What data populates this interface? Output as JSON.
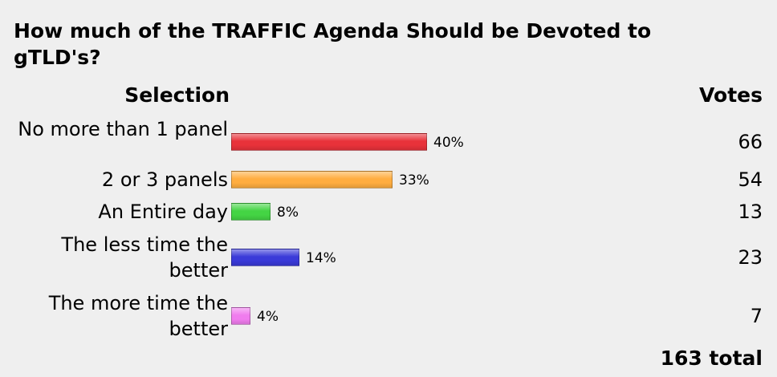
{
  "title": "How much of the TRAFFIC Agenda Should be Devoted to gTLD's?",
  "headers": {
    "selection": "Selection",
    "votes": "Votes"
  },
  "total": "163 total",
  "chart_data": {
    "type": "bar",
    "orientation": "horizontal",
    "title": "How much of the TRAFFIC Agenda Should be Devoted to gTLD's?",
    "categories": [
      "No more than 1 panel",
      "2 or 3 panels",
      "An Entire day",
      "The less time the better",
      "The more time the better"
    ],
    "values": [
      40,
      33,
      8,
      14,
      4
    ],
    "value_labels": [
      "40%",
      "33%",
      "8%",
      "14%",
      "4%"
    ],
    "votes": [
      "66",
      "54",
      "13",
      "23",
      "7"
    ],
    "colors": [
      "#e8323a",
      "#ffad40",
      "#44d444",
      "#3a3ad8",
      "#f07cee"
    ],
    "xlim": [
      0,
      100
    ],
    "total_votes": 163
  }
}
